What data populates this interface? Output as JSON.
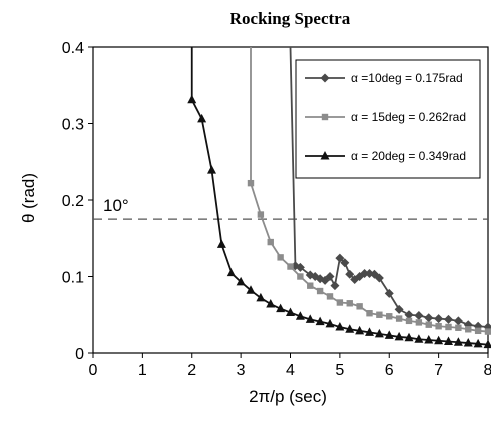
{
  "chart_data": {
    "type": "line",
    "title": "Rocking Spectra",
    "xlabel": "2π/p (sec)",
    "ylabel": "θ (rad)",
    "xlim": [
      0,
      8
    ],
    "ylim": [
      0,
      0.4
    ],
    "x_ticks": [
      "0",
      "1",
      "2",
      "3",
      "4",
      "5",
      "6",
      "7",
      "8"
    ],
    "y_ticks": [
      "0",
      "0.1",
      "0.2",
      "0.3",
      "0.4"
    ],
    "grid": false,
    "legend_position": "top-right",
    "reference_line": {
      "y": 0.175,
      "label": "10°",
      "style": "dashed"
    },
    "series": [
      {
        "name": "α =10deg = 0.175rad",
        "color": "#4a4a4a",
        "marker": "diamond",
        "asymptote_x": 4.0,
        "x": [
          4.0,
          4.1,
          4.2,
          4.4,
          4.5,
          4.6,
          4.7,
          4.8,
          4.9,
          5.0,
          5.1,
          5.2,
          5.3,
          5.4,
          5.5,
          5.6,
          5.7,
          5.8,
          6.0,
          6.2,
          6.4,
          6.6,
          6.8,
          7.0,
          7.2,
          7.4,
          7.6,
          7.8,
          8.0
        ],
        "y": [
          0.4,
          0.114,
          0.112,
          0.102,
          0.1,
          0.097,
          0.095,
          0.1,
          0.088,
          0.124,
          0.118,
          0.103,
          0.096,
          0.1,
          0.104,
          0.104,
          0.103,
          0.098,
          0.078,
          0.057,
          0.05,
          0.049,
          0.046,
          0.045,
          0.044,
          0.042,
          0.037,
          0.035,
          0.034
        ]
      },
      {
        "name": "α = 15deg = 0.262rad",
        "color": "#8c8c8c",
        "marker": "square",
        "asymptote_x": 3.2,
        "x": [
          3.2,
          3.2,
          3.4,
          3.6,
          3.8,
          4.0,
          4.2,
          4.4,
          4.6,
          4.8,
          5.0,
          5.2,
          5.4,
          5.6,
          5.8,
          6.0,
          6.2,
          6.4,
          6.6,
          6.8,
          7.0,
          7.2,
          7.4,
          7.6,
          7.8,
          8.0
        ],
        "y": [
          0.4,
          0.222,
          0.181,
          0.145,
          0.125,
          0.113,
          0.1,
          0.088,
          0.081,
          0.074,
          0.066,
          0.065,
          0.061,
          0.052,
          0.05,
          0.048,
          0.045,
          0.042,
          0.04,
          0.037,
          0.035,
          0.034,
          0.033,
          0.031,
          0.029,
          0.028
        ]
      },
      {
        "name": "α = 20deg = 0.349rad",
        "color": "#111111",
        "marker": "triangle",
        "asymptote_x": 2.0,
        "x": [
          2.0,
          2.0,
          2.2,
          2.4,
          2.6,
          2.8,
          3.0,
          3.2,
          3.4,
          3.6,
          3.8,
          4.0,
          4.2,
          4.4,
          4.6,
          4.8,
          5.0,
          5.2,
          5.4,
          5.6,
          5.8,
          6.0,
          6.2,
          6.4,
          6.6,
          6.8,
          7.0,
          7.2,
          7.4,
          7.6,
          7.8,
          8.0
        ],
        "y": [
          0.4,
          0.331,
          0.306,
          0.239,
          0.142,
          0.105,
          0.093,
          0.082,
          0.072,
          0.064,
          0.058,
          0.053,
          0.048,
          0.044,
          0.041,
          0.038,
          0.034,
          0.031,
          0.029,
          0.027,
          0.025,
          0.023,
          0.021,
          0.02,
          0.018,
          0.017,
          0.016,
          0.015,
          0.014,
          0.013,
          0.012,
          0.011
        ]
      }
    ]
  }
}
